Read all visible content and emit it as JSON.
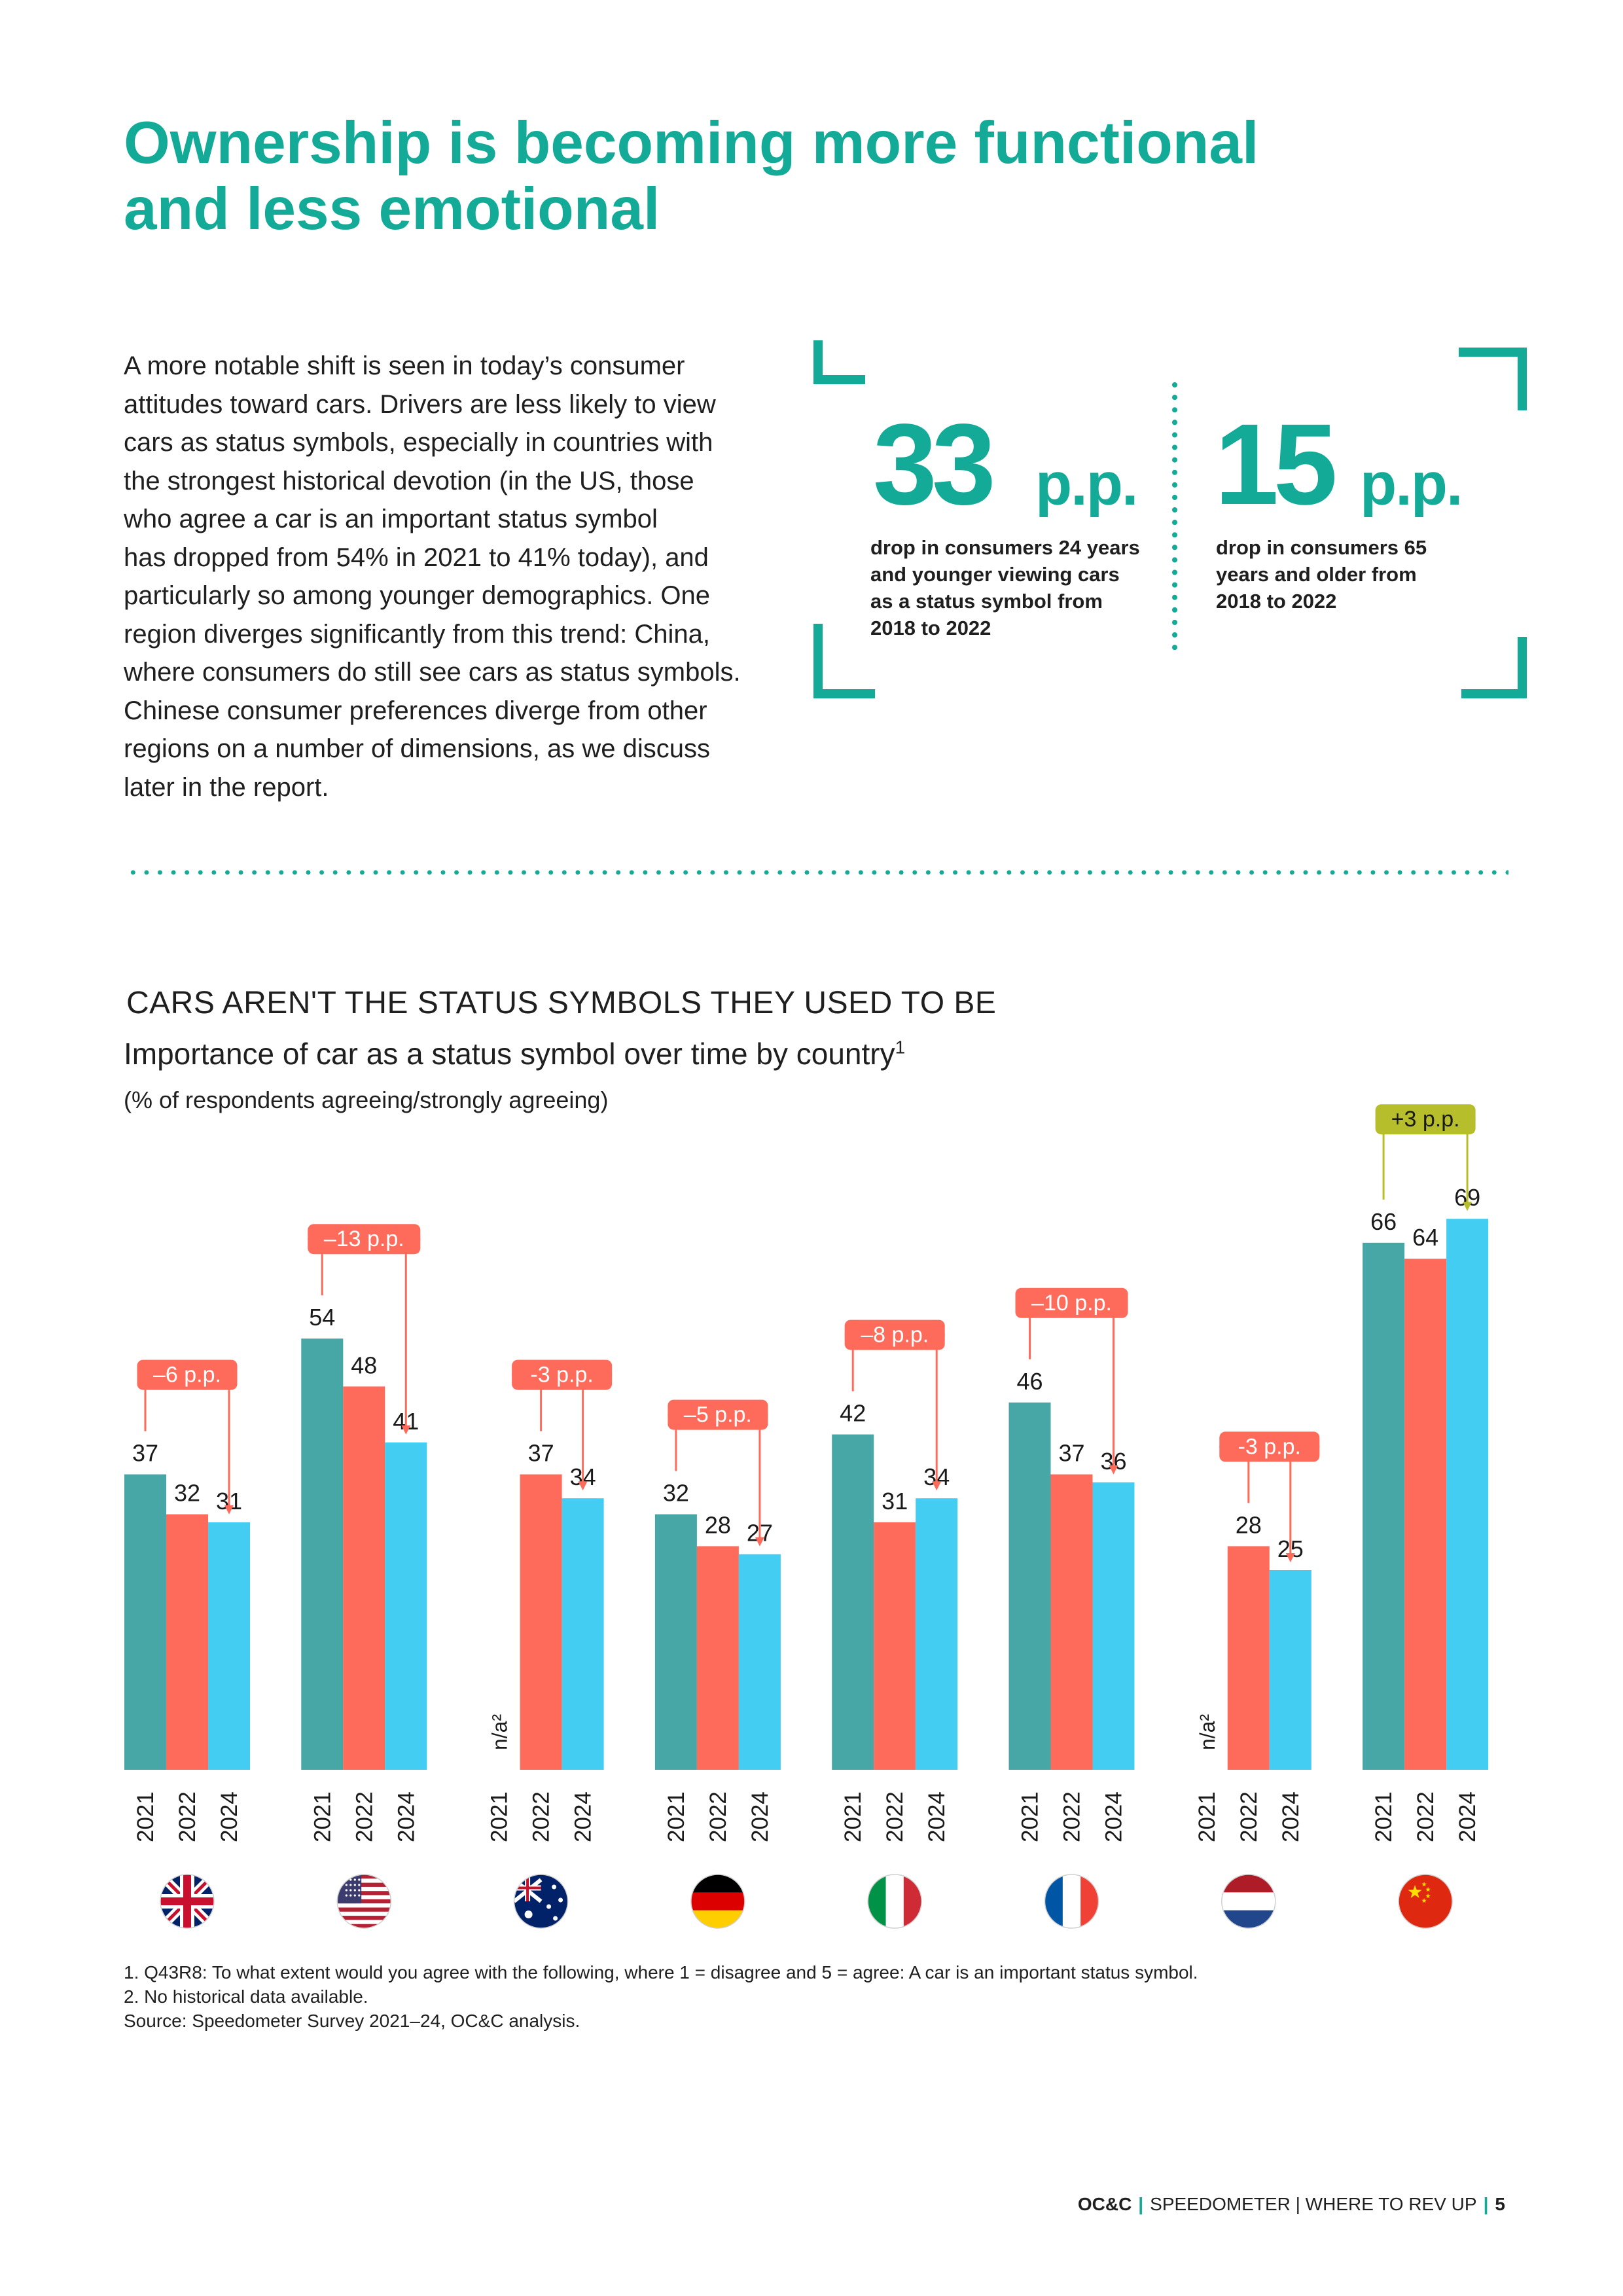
{
  "heading": {
    "lines": [
      "Ownership is becoming more functional",
      "and less emotional"
    ]
  },
  "intro": {
    "lines": [
      "A more notable shift is seen in today’s consumer",
      "attitudes toward cars. Drivers are less likely to view",
      "cars as status symbols, especially in countries with",
      "the strongest historical devotion (in the US, those",
      "who agree a car is an important status symbol",
      "has dropped from 54% in 2021 to 41% today), and",
      "particularly so among younger demographics. One",
      "region diverges significantly from this trend: China,",
      "where consumers do still see cars as status symbols.",
      "Chinese consumer preferences diverge from other",
      "regions on a number of dimensions, as we discuss",
      "later in the report."
    ]
  },
  "stats": [
    {
      "value": "33",
      "unit": "p.p.",
      "caption": [
        "drop in consumers 24 years",
        "and younger viewing cars",
        "as a status symbol from",
        "2018 to 2022"
      ]
    },
    {
      "value": "15",
      "unit": "p.p.",
      "caption": [
        "drop in consumers 65",
        "years and older from",
        "2018 to 2022"
      ]
    }
  ],
  "chart": {
    "title": "CARS AREN'T THE STATUS SYMBOLS THEY USED TO BE",
    "subtitle": "Importance of car as a status symbol over time by country",
    "subtitle_sup": "1",
    "unit_note": "(% of respondents agreeing/strongly agreeing)"
  },
  "chart_data": {
    "type": "bar",
    "title": "Importance of car as a status symbol over time by country",
    "ylabel": "% of respondents agreeing/strongly agreeing",
    "years": [
      "2021",
      "2022",
      "2024"
    ],
    "ylim": [
      0,
      75
    ],
    "grid": false,
    "series_colors": {
      "2021": "#47a6a6",
      "2022": "#ff6b5b",
      "2024": "#44cdf3"
    },
    "na_label": "n/a²",
    "groups": [
      {
        "flag": "uk-flag-icon",
        "values": [
          37,
          32,
          31
        ],
        "change": "–6 p.p.",
        "change_color": "#ff6b5b"
      },
      {
        "flag": "us-flag-icon",
        "values": [
          54,
          48,
          41
        ],
        "change": "–13 p.p.",
        "change_color": "#ff6b5b"
      },
      {
        "flag": "australia-flag-icon",
        "values": [
          null,
          37,
          34
        ],
        "change": "-3 p.p.",
        "change_color": "#ff6b5b"
      },
      {
        "flag": "germany-flag-icon",
        "values": [
          32,
          28,
          27
        ],
        "change": "–5 p.p.",
        "change_color": "#ff6b5b"
      },
      {
        "flag": "italy-flag-icon",
        "values": [
          42,
          31,
          34
        ],
        "change": "–8 p.p.",
        "change_color": "#ff6b5b"
      },
      {
        "flag": "france-flag-icon",
        "values": [
          46,
          37,
          36
        ],
        "change": "–10 p.p.",
        "change_color": "#ff6b5b"
      },
      {
        "flag": "netherlands-flag-icon",
        "values": [
          null,
          28,
          25
        ],
        "change": "-3 p.p.",
        "change_color": "#ff6b5b"
      },
      {
        "flag": "china-flag-icon",
        "values": [
          66,
          64,
          69
        ],
        "change": "+3 p.p.",
        "change_color": "#b6be2b"
      }
    ]
  },
  "footnotes": [
    "1. Q43R8: To what extent would you agree with the following, where 1 = disagree and 5 = agree: A car is an important status symbol.",
    "2. No historical data available.",
    "Source: Speedometer Survey 2021–24, OC&C analysis."
  ],
  "footer": {
    "brand": "OC&C",
    "section": "SPEEDOMETER | WHERE TO REV UP",
    "page": "5"
  },
  "colors": {
    "accent": "#13ab98",
    "teal_bar": "#47a6a6",
    "coral_bar": "#ff6b5b",
    "cyan_bar": "#44cdf3",
    "olive_badge": "#b6be2b"
  }
}
